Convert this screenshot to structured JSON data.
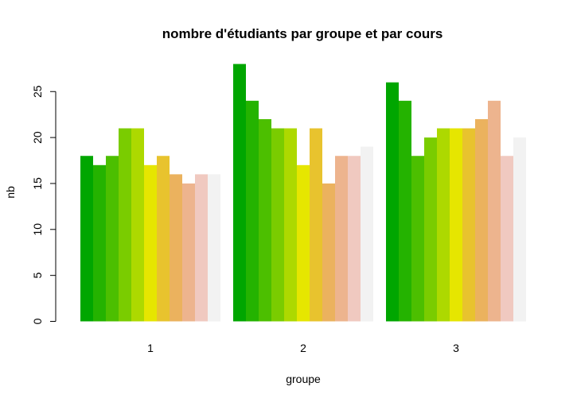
{
  "chart_data": {
    "type": "bar",
    "mode": "grouped",
    "title": "nombre d'étudiants par groupe et par cours",
    "xlabel": "groupe",
    "ylabel": "nb",
    "categories": [
      "1",
      "2",
      "3"
    ],
    "ylim": [
      0,
      28
    ],
    "yticks": [
      "0",
      "5",
      "10",
      "15",
      "20",
      "25"
    ],
    "grid": false,
    "legend": "none",
    "colors": [
      "#00A600",
      "#24B300",
      "#4CBF00",
      "#7ACC00",
      "#ADD900",
      "#E6E600",
      "#E8C32E",
      "#EBB25E",
      "#EDB48E",
      "#F0C9C0",
      "#F2F2F2"
    ],
    "series": [
      {
        "values": [
          18,
          28,
          26
        ]
      },
      {
        "values": [
          17,
          24,
          24
        ]
      },
      {
        "values": [
          18,
          22,
          18
        ]
      },
      {
        "values": [
          21,
          21,
          20
        ]
      },
      {
        "values": [
          21,
          21,
          21
        ]
      },
      {
        "values": [
          17,
          17,
          21
        ]
      },
      {
        "values": [
          18,
          21,
          21
        ]
      },
      {
        "values": [
          16,
          15,
          22
        ]
      },
      {
        "values": [
          15,
          18,
          24
        ]
      },
      {
        "values": [
          16,
          18,
          18
        ]
      },
      {
        "values": [
          16,
          19,
          20
        ]
      }
    ]
  }
}
